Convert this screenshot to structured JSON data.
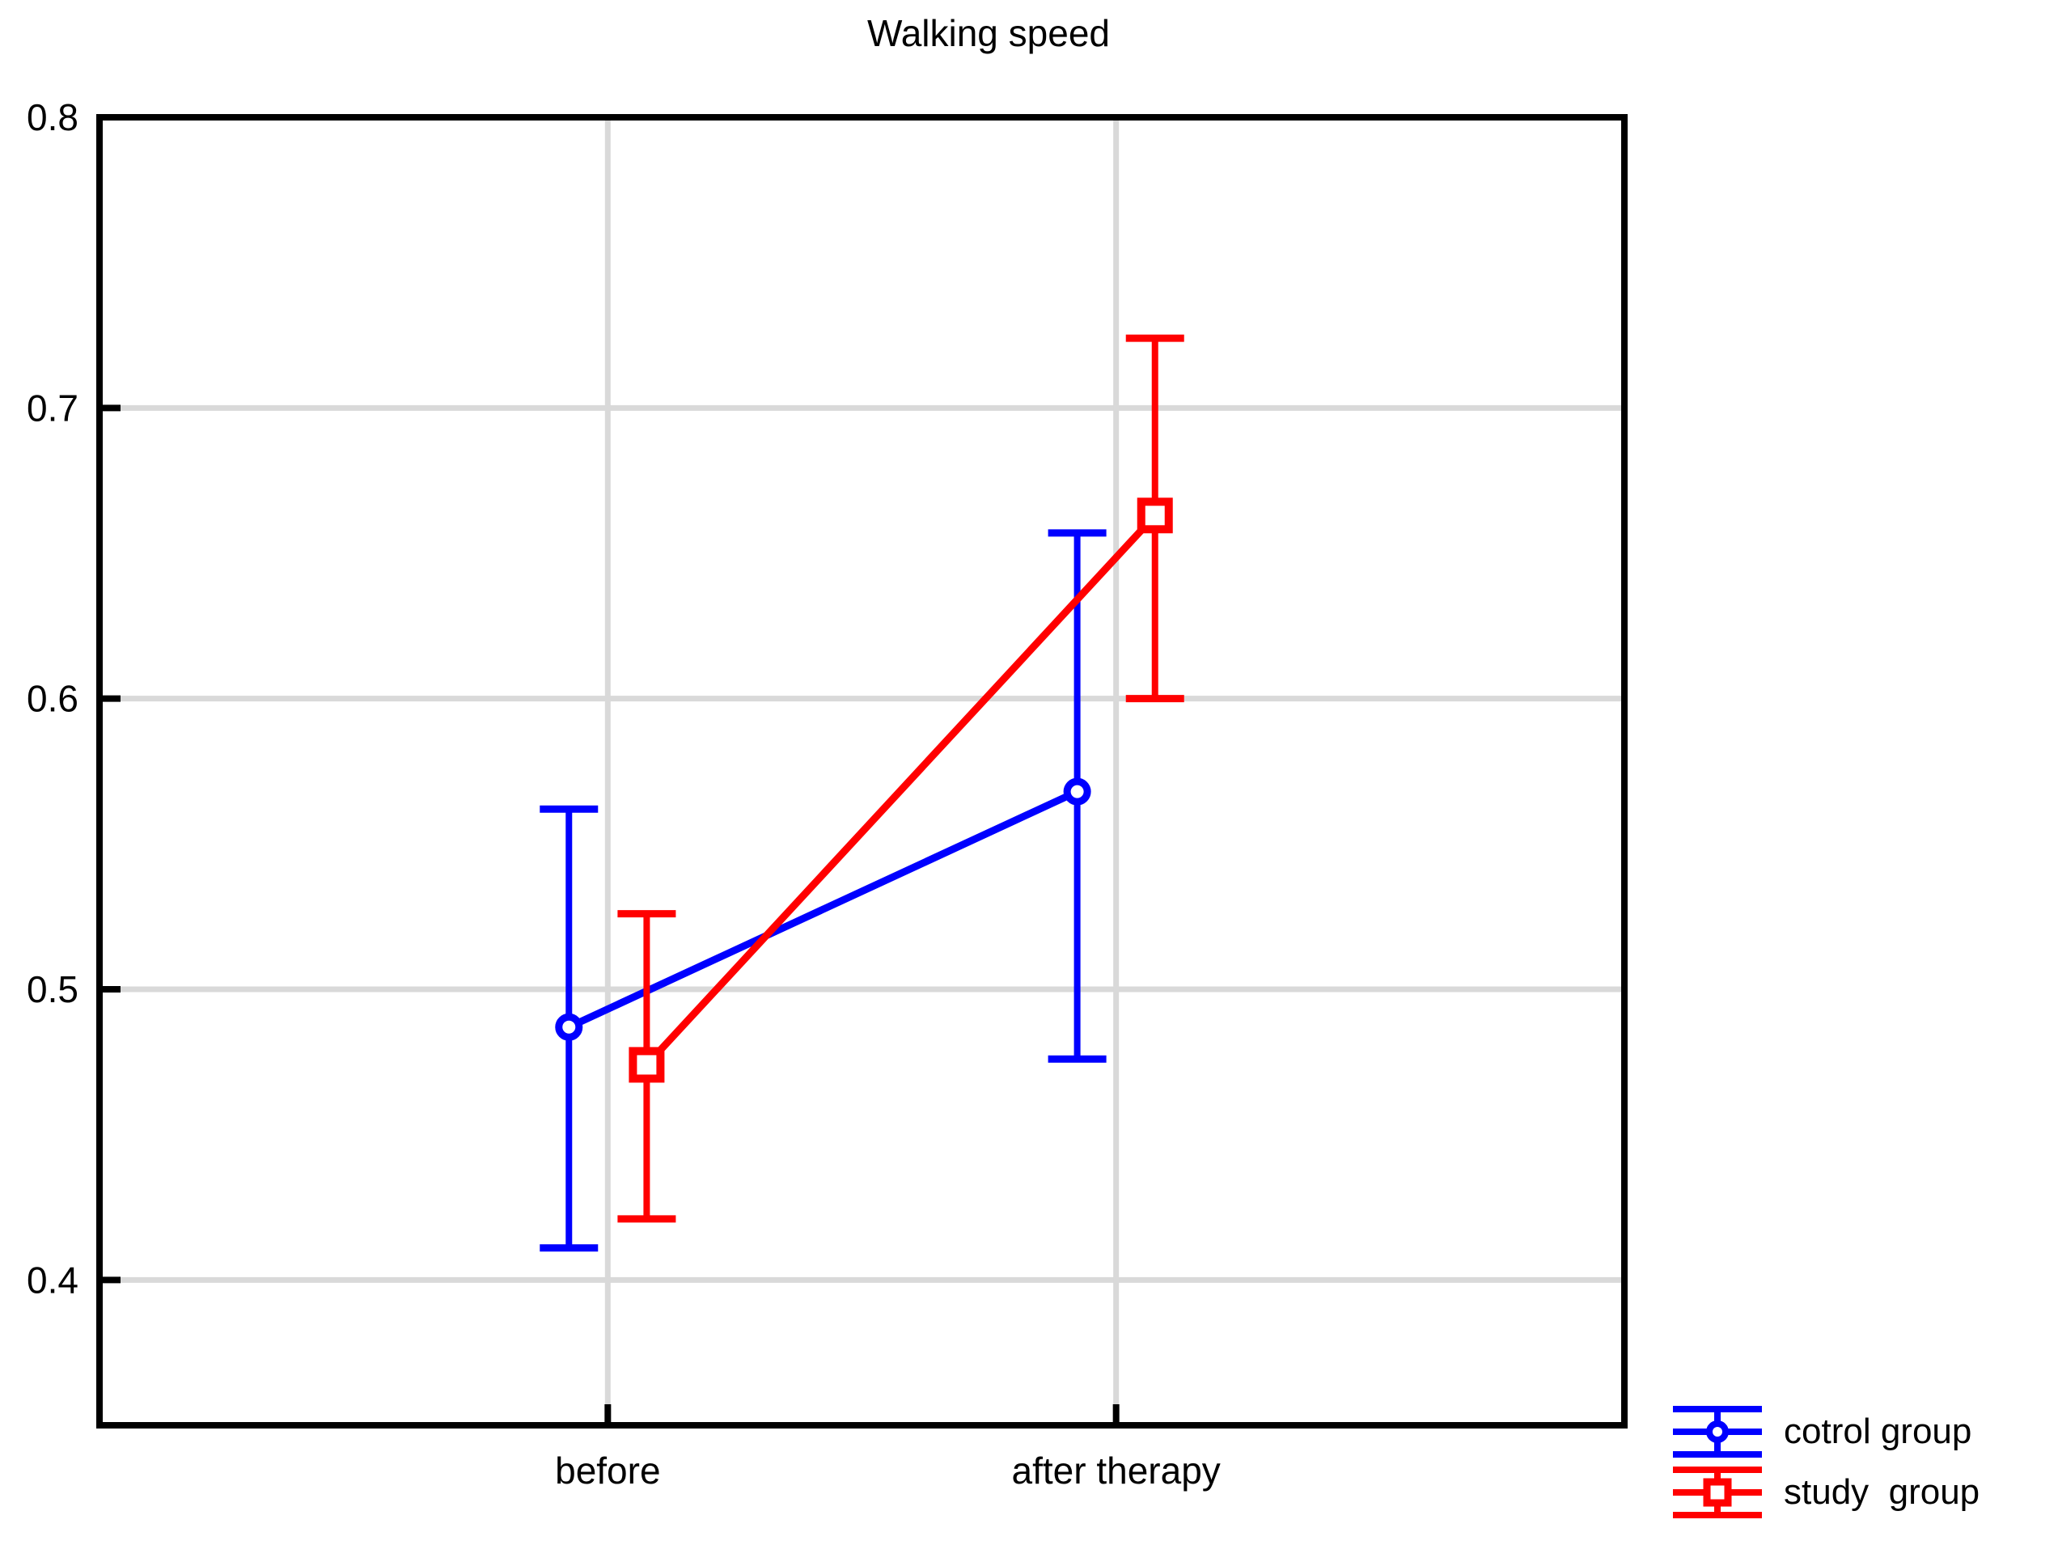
{
  "title": "Walking speed",
  "colors": {
    "control": "#0000ff",
    "study": "#ff0000",
    "grid": "#d9d9d9",
    "frame": "#000000",
    "text": "#000000",
    "background": "#ffffff"
  },
  "chart_data": {
    "type": "line",
    "subtype": "means-with-error-bars",
    "title": "Walking speed",
    "categories": [
      "before",
      "after therapy"
    ],
    "y_ticks": [
      {
        "value": 0.8,
        "label": "0.8"
      },
      {
        "value": 0.7,
        "label": "0.7"
      },
      {
        "value": 0.6,
        "label": "0.6"
      },
      {
        "value": 0.5,
        "label": "0.5"
      },
      {
        "value": 0.4,
        "label": "0.4"
      }
    ],
    "ylim": [
      0.35,
      0.8
    ],
    "grid": true,
    "legend_position": "bottom-right",
    "series": [
      {
        "name": "cotrol group",
        "color": "#0000ff",
        "marker": "circle",
        "x_offset": -0.0255,
        "means": [
          0.487,
          0.568
        ],
        "upper": [
          0.562,
          0.657
        ],
        "lower": [
          0.411,
          0.476
        ]
      },
      {
        "name": "study  group",
        "color": "#ff0000",
        "marker": "square",
        "x_offset": 0.0255,
        "means": [
          0.474,
          0.663
        ],
        "upper": [
          0.526,
          0.724
        ],
        "lower": [
          0.421,
          0.6
        ]
      }
    ]
  }
}
